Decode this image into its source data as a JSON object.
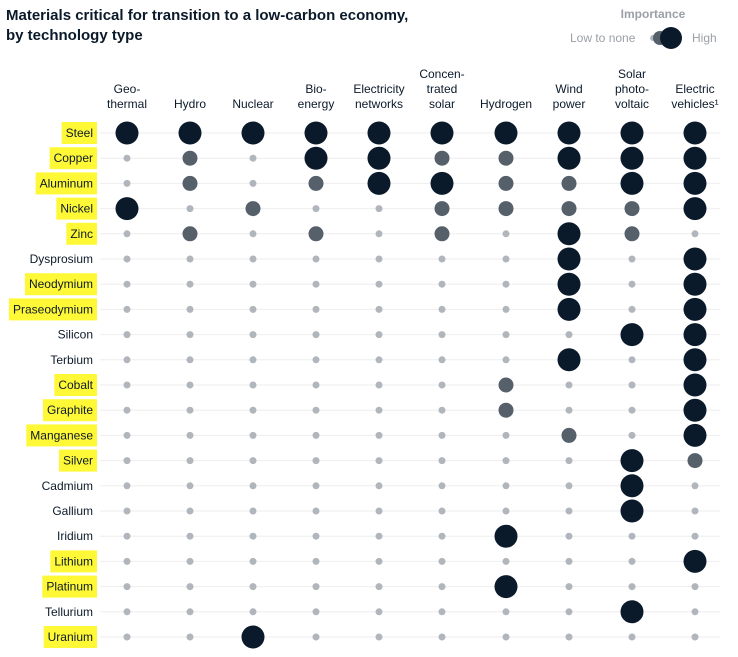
{
  "chart_data": {
    "type": "dot-matrix",
    "title": "Materials critical for transition to a low-carbon economy, by technology type",
    "title_lines": [
      "Materials critical for transition to a low-carbon economy,",
      "by technology type"
    ],
    "legend": {
      "title": "Importance",
      "low_label": "Low to none",
      "high_label": "High",
      "placement": "top-right"
    },
    "scale": {
      "levels": [
        0,
        1,
        2
      ],
      "meaning": "0 = low to none, 1 = medium, 2 = high"
    },
    "colors": {
      "high": "#0b1a2a",
      "medium": "#55606b",
      "low": "#b0b6bc",
      "highlight": "#fff836"
    },
    "columns": [
      {
        "name": "Geothermal",
        "label_lines": [
          "Geo-",
          "thermal"
        ]
      },
      {
        "name": "Hydro",
        "label_lines": [
          "Hydro"
        ]
      },
      {
        "name": "Nuclear",
        "label_lines": [
          "Nuclear"
        ]
      },
      {
        "name": "Bioenergy",
        "label_lines": [
          "Bio-",
          "energy"
        ]
      },
      {
        "name": "Electricity networks",
        "label_lines": [
          "Electricity",
          "networks"
        ]
      },
      {
        "name": "Concentrated solar",
        "label_lines": [
          "Concen-",
          "trated",
          "solar"
        ]
      },
      {
        "name": "Hydrogen",
        "label_lines": [
          "Hydrogen"
        ]
      },
      {
        "name": "Wind power",
        "label_lines": [
          "Wind",
          "power"
        ]
      },
      {
        "name": "Solar photovoltaic",
        "label_lines": [
          "Solar",
          "photo-",
          "voltaic"
        ]
      },
      {
        "name": "Electric vehicles¹",
        "label_lines": [
          "Electric",
          "vehicles¹"
        ]
      }
    ],
    "rows": [
      {
        "material": "Steel",
        "highlighted": true,
        "values": [
          2,
          2,
          2,
          2,
          2,
          2,
          2,
          2,
          2,
          2
        ]
      },
      {
        "material": "Copper",
        "highlighted": true,
        "values": [
          0,
          1,
          0,
          2,
          2,
          1,
          1,
          2,
          2,
          2
        ]
      },
      {
        "material": "Aluminum",
        "highlighted": true,
        "values": [
          0,
          1,
          0,
          1,
          2,
          2,
          1,
          1,
          2,
          2
        ]
      },
      {
        "material": "Nickel",
        "highlighted": true,
        "values": [
          2,
          0,
          1,
          0,
          0,
          1,
          1,
          1,
          1,
          2
        ]
      },
      {
        "material": "Zinc",
        "highlighted": true,
        "values": [
          0,
          1,
          0,
          1,
          0,
          1,
          0,
          2,
          1,
          0
        ]
      },
      {
        "material": "Dysprosium",
        "highlighted": false,
        "values": [
          0,
          0,
          0,
          0,
          0,
          0,
          0,
          2,
          0,
          2
        ]
      },
      {
        "material": "Neodymium",
        "highlighted": true,
        "values": [
          0,
          0,
          0,
          0,
          0,
          0,
          0,
          2,
          0,
          2
        ]
      },
      {
        "material": "Praseodymium",
        "highlighted": true,
        "values": [
          0,
          0,
          0,
          0,
          0,
          0,
          0,
          2,
          0,
          2
        ]
      },
      {
        "material": "Silicon",
        "highlighted": false,
        "values": [
          0,
          0,
          0,
          0,
          0,
          0,
          0,
          0,
          2,
          2
        ]
      },
      {
        "material": "Terbium",
        "highlighted": false,
        "values": [
          0,
          0,
          0,
          0,
          0,
          0,
          0,
          2,
          0,
          2
        ]
      },
      {
        "material": "Cobalt",
        "highlighted": true,
        "values": [
          0,
          0,
          0,
          0,
          0,
          0,
          1,
          0,
          0,
          2
        ]
      },
      {
        "material": "Graphite",
        "highlighted": true,
        "values": [
          0,
          0,
          0,
          0,
          0,
          0,
          1,
          0,
          0,
          2
        ]
      },
      {
        "material": "Manganese",
        "highlighted": true,
        "values": [
          0,
          0,
          0,
          0,
          0,
          0,
          0,
          1,
          0,
          2
        ]
      },
      {
        "material": "Silver",
        "highlighted": true,
        "values": [
          0,
          0,
          0,
          0,
          0,
          0,
          0,
          0,
          2,
          1
        ]
      },
      {
        "material": "Cadmium",
        "highlighted": false,
        "values": [
          0,
          0,
          0,
          0,
          0,
          0,
          0,
          0,
          2,
          0
        ]
      },
      {
        "material": "Gallium",
        "highlighted": false,
        "values": [
          0,
          0,
          0,
          0,
          0,
          0,
          0,
          0,
          2,
          0
        ]
      },
      {
        "material": "Iridium",
        "highlighted": false,
        "values": [
          0,
          0,
          0,
          0,
          0,
          0,
          2,
          0,
          0,
          0
        ]
      },
      {
        "material": "Lithium",
        "highlighted": true,
        "values": [
          0,
          0,
          0,
          0,
          0,
          0,
          0,
          0,
          0,
          2
        ]
      },
      {
        "material": "Platinum",
        "highlighted": true,
        "values": [
          0,
          0,
          0,
          0,
          0,
          0,
          2,
          0,
          0,
          0
        ]
      },
      {
        "material": "Tellurium",
        "highlighted": false,
        "values": [
          0,
          0,
          0,
          0,
          0,
          0,
          0,
          0,
          2,
          0
        ]
      },
      {
        "material": "Uranium",
        "highlighted": true,
        "values": [
          0,
          0,
          2,
          0,
          0,
          0,
          0,
          0,
          0,
          0
        ]
      }
    ]
  }
}
